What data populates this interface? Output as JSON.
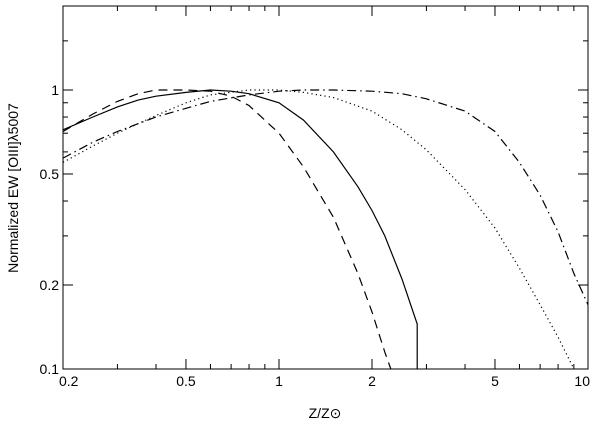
{
  "chart_data": {
    "type": "line",
    "title": "",
    "xlabel": "Z/Z⊙",
    "ylabel": "Normalized  EW  [OIII]λ5007",
    "xscale": "log",
    "yscale": "log",
    "xlim": [
      0.2,
      10
    ],
    "ylim": [
      0.1,
      2.0
    ],
    "grid": false,
    "legend": "none",
    "xticks": [
      {
        "value": 0.2,
        "label": "0.2"
      },
      {
        "value": 0.5,
        "label": "0.5"
      },
      {
        "value": 1,
        "label": "1"
      },
      {
        "value": 2,
        "label": "2"
      },
      {
        "value": 5,
        "label": "5"
      },
      {
        "value": 10,
        "label": "10"
      }
    ],
    "yticks": [
      {
        "value": 0.1,
        "label": "0.1"
      },
      {
        "value": 0.2,
        "label": "0.2"
      },
      {
        "value": 0.5,
        "label": "0.5"
      },
      {
        "value": 1,
        "label": "1"
      }
    ],
    "series": [
      {
        "style": "solid",
        "x": [
          0.2,
          0.25,
          0.3,
          0.35,
          0.4,
          0.5,
          0.6,
          0.7,
          0.8,
          1.0,
          1.2,
          1.5,
          1.8,
          2.0,
          2.2,
          2.5,
          2.8,
          2.8
        ],
        "y": [
          0.72,
          0.8,
          0.87,
          0.92,
          0.95,
          0.98,
          1.0,
          0.99,
          0.97,
          0.9,
          0.78,
          0.6,
          0.45,
          0.37,
          0.3,
          0.21,
          0.145,
          0.1
        ]
      },
      {
        "style": "dashed",
        "x": [
          0.2,
          0.25,
          0.3,
          0.35,
          0.4,
          0.5,
          0.6,
          0.7,
          0.8,
          1.0,
          1.2,
          1.5,
          1.8,
          2.0,
          2.2,
          2.3
        ],
        "y": [
          0.71,
          0.82,
          0.91,
          0.97,
          1.0,
          1.0,
          0.99,
          0.95,
          0.88,
          0.7,
          0.53,
          0.35,
          0.22,
          0.16,
          0.115,
          0.1
        ]
      },
      {
        "style": "dotted",
        "x": [
          0.2,
          0.25,
          0.3,
          0.4,
          0.5,
          0.6,
          0.8,
          1.0,
          1.2,
          1.5,
          2.0,
          2.5,
          3.0,
          4.0,
          5.0,
          6.0,
          7.0,
          8.0,
          9.0
        ],
        "y": [
          0.55,
          0.63,
          0.7,
          0.81,
          0.9,
          0.96,
          1.0,
          1.0,
          0.98,
          0.94,
          0.84,
          0.72,
          0.61,
          0.44,
          0.32,
          0.23,
          0.17,
          0.13,
          0.1
        ]
      },
      {
        "style": "dashdot",
        "x": [
          0.2,
          0.25,
          0.3,
          0.4,
          0.5,
          0.6,
          0.8,
          1.0,
          1.2,
          1.5,
          2.0,
          2.5,
          3.0,
          4.0,
          5.0,
          6.0,
          7.0,
          8.0,
          9.0,
          10.0
        ],
        "y": [
          0.57,
          0.65,
          0.71,
          0.8,
          0.86,
          0.91,
          0.96,
          0.99,
          1.0,
          1.0,
          0.99,
          0.97,
          0.93,
          0.84,
          0.71,
          0.55,
          0.42,
          0.31,
          0.22,
          0.17
        ]
      }
    ]
  }
}
